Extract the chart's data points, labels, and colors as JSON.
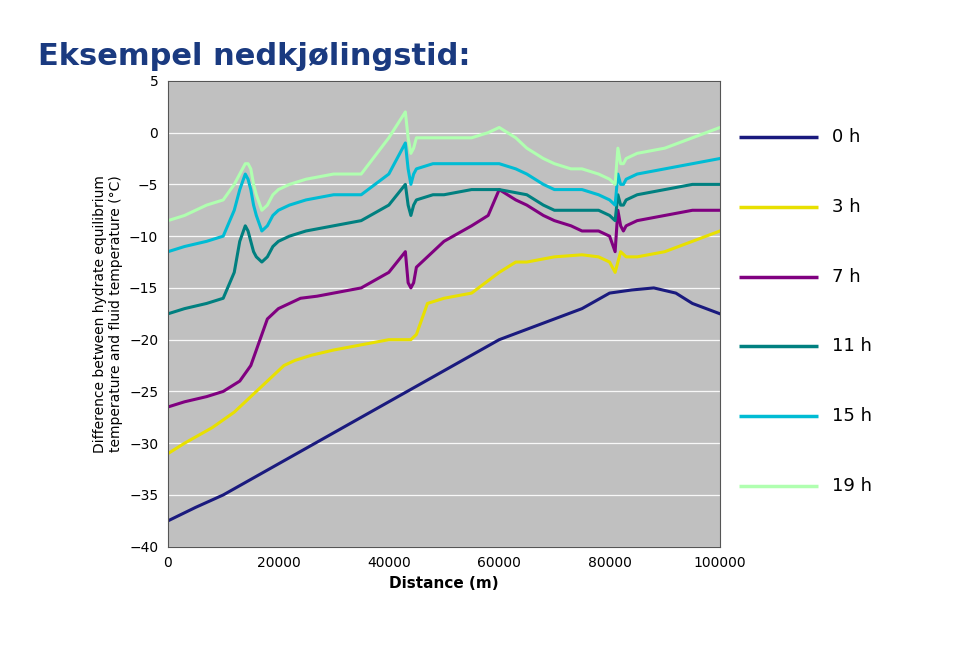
{
  "title": "Eksempel nedkjølingstid:",
  "xlabel": "Distance (m)",
  "ylabel": "Difference between hydrate equilibrium\ntemperature and fluid temperature (°C)",
  "xlim": [
    0,
    100000
  ],
  "ylim": [
    -40,
    5
  ],
  "yticks": [
    5,
    0,
    -5,
    -10,
    -15,
    -20,
    -25,
    -30,
    -35,
    -40
  ],
  "xticks": [
    0,
    20000,
    40000,
    60000,
    80000,
    100000
  ],
  "plot_bg_color": "#c0c0c0",
  "fig_bg": "#ffffff",
  "series": [
    {
      "label": "0 h",
      "color": "#1a1a7e",
      "lw": 2.2,
      "x": [
        0,
        5000,
        10000,
        15000,
        20000,
        25000,
        30000,
        35000,
        40000,
        45000,
        50000,
        55000,
        60000,
        65000,
        70000,
        75000,
        80000,
        84000,
        88000,
        92000,
        95000,
        100000
      ],
      "y": [
        -37.5,
        -36.2,
        -35.0,
        -33.5,
        -32.0,
        -30.5,
        -29.0,
        -27.5,
        -26.0,
        -24.5,
        -23.0,
        -21.5,
        -20.0,
        -19.0,
        -18.0,
        -17.0,
        -15.5,
        -15.2,
        -15.0,
        -15.5,
        -16.5,
        -17.5
      ]
    },
    {
      "label": "3 h",
      "color": "#e8e000",
      "lw": 2.2,
      "x": [
        0,
        3000,
        8000,
        12000,
        15000,
        18000,
        19000,
        20000,
        21000,
        23000,
        26000,
        30000,
        35000,
        40000,
        44000,
        45000,
        46000,
        47000,
        50000,
        55000,
        60000,
        63000,
        65000,
        68000,
        70000,
        75000,
        78000,
        80000,
        81000,
        82000,
        83000,
        85000,
        90000,
        95000,
        100000
      ],
      "y": [
        -31.0,
        -30.0,
        -28.5,
        -27.0,
        -25.5,
        -24.0,
        -23.5,
        -23.0,
        -22.5,
        -22.0,
        -21.5,
        -21.0,
        -20.5,
        -20.0,
        -20.0,
        -19.5,
        -18.0,
        -16.5,
        -16.0,
        -15.5,
        -13.5,
        -12.5,
        -12.5,
        -12.2,
        -12.0,
        -11.8,
        -12.0,
        -12.5,
        -13.5,
        -11.5,
        -12.0,
        -12.0,
        -11.5,
        -10.5,
        -9.5
      ]
    },
    {
      "label": "7 h",
      "color": "#800080",
      "lw": 2.2,
      "x": [
        0,
        3000,
        7000,
        10000,
        13000,
        15000,
        16000,
        17000,
        18000,
        19000,
        20000,
        22000,
        24000,
        27000,
        30000,
        35000,
        40000,
        43000,
        43500,
        44000,
        44500,
        45000,
        48000,
        50000,
        55000,
        58000,
        60000,
        63000,
        65000,
        68000,
        70000,
        73000,
        75000,
        78000,
        80000,
        81000,
        81500,
        82000,
        82500,
        83000,
        85000,
        90000,
        95000,
        100000
      ],
      "y": [
        -26.5,
        -26.0,
        -25.5,
        -25.0,
        -24.0,
        -22.5,
        -21.0,
        -19.5,
        -18.0,
        -17.5,
        -17.0,
        -16.5,
        -16.0,
        -15.8,
        -15.5,
        -15.0,
        -13.5,
        -11.5,
        -14.5,
        -15.0,
        -14.5,
        -13.0,
        -11.5,
        -10.5,
        -9.0,
        -8.0,
        -5.5,
        -6.5,
        -7.0,
        -8.0,
        -8.5,
        -9.0,
        -9.5,
        -9.5,
        -10.0,
        -11.5,
        -7.5,
        -9.0,
        -9.5,
        -9.0,
        -8.5,
        -8.0,
        -7.5,
        -7.5
      ]
    },
    {
      "label": "11 h",
      "color": "#008080",
      "lw": 2.2,
      "x": [
        0,
        3000,
        7000,
        10000,
        12000,
        13000,
        14000,
        14500,
        15000,
        15500,
        16000,
        17000,
        18000,
        19000,
        20000,
        22000,
        25000,
        30000,
        35000,
        40000,
        43000,
        43500,
        44000,
        44500,
        45000,
        48000,
        50000,
        55000,
        60000,
        65000,
        68000,
        70000,
        73000,
        75000,
        78000,
        80000,
        81000,
        81500,
        82000,
        82500,
        83000,
        85000,
        90000,
        95000,
        100000
      ],
      "y": [
        -17.5,
        -17.0,
        -16.5,
        -16.0,
        -13.5,
        -10.5,
        -9.0,
        -9.5,
        -10.5,
        -11.5,
        -12.0,
        -12.5,
        -12.0,
        -11.0,
        -10.5,
        -10.0,
        -9.5,
        -9.0,
        -8.5,
        -7.0,
        -5.0,
        -7.0,
        -8.0,
        -7.0,
        -6.5,
        -6.0,
        -6.0,
        -5.5,
        -5.5,
        -6.0,
        -7.0,
        -7.5,
        -7.5,
        -7.5,
        -7.5,
        -8.0,
        -8.5,
        -6.0,
        -7.0,
        -7.0,
        -6.5,
        -6.0,
        -5.5,
        -5.0,
        -5.0
      ]
    },
    {
      "label": "15 h",
      "color": "#00bcd4",
      "lw": 2.2,
      "x": [
        0,
        3000,
        7000,
        10000,
        12000,
        13000,
        14000,
        14500,
        15000,
        15500,
        16000,
        17000,
        18000,
        19000,
        20000,
        22000,
        25000,
        30000,
        35000,
        40000,
        43000,
        43500,
        44000,
        44500,
        45000,
        48000,
        50000,
        55000,
        60000,
        63000,
        65000,
        68000,
        70000,
        73000,
        75000,
        78000,
        80000,
        81000,
        81500,
        82000,
        82500,
        83000,
        85000,
        90000,
        95000,
        100000
      ],
      "y": [
        -11.5,
        -11.0,
        -10.5,
        -10.0,
        -7.5,
        -5.5,
        -4.0,
        -4.5,
        -5.5,
        -7.0,
        -8.0,
        -9.5,
        -9.0,
        -8.0,
        -7.5,
        -7.0,
        -6.5,
        -6.0,
        -6.0,
        -4.0,
        -1.0,
        -3.5,
        -5.0,
        -4.0,
        -3.5,
        -3.0,
        -3.0,
        -3.0,
        -3.0,
        -3.5,
        -4.0,
        -5.0,
        -5.5,
        -5.5,
        -5.5,
        -6.0,
        -6.5,
        -7.0,
        -4.0,
        -5.0,
        -5.0,
        -4.5,
        -4.0,
        -3.5,
        -3.0,
        -2.5
      ]
    },
    {
      "label": "19 h",
      "color": "#b0ffb0",
      "lw": 2.2,
      "x": [
        0,
        3000,
        7000,
        10000,
        12000,
        13000,
        14000,
        14500,
        15000,
        15500,
        16000,
        17000,
        18000,
        19000,
        20000,
        22000,
        25000,
        30000,
        35000,
        40000,
        43000,
        43500,
        44000,
        44500,
        45000,
        48000,
        50000,
        55000,
        58000,
        60000,
        63000,
        65000,
        68000,
        70000,
        73000,
        75000,
        78000,
        80000,
        81000,
        81500,
        82000,
        82500,
        83000,
        85000,
        90000,
        95000,
        100000
      ],
      "y": [
        -8.5,
        -8.0,
        -7.0,
        -6.5,
        -5.0,
        -4.0,
        -3.0,
        -3.0,
        -3.5,
        -5.0,
        -6.0,
        -7.5,
        -7.0,
        -6.0,
        -5.5,
        -5.0,
        -4.5,
        -4.0,
        -4.0,
        -0.5,
        2.0,
        -0.5,
        -2.0,
        -1.5,
        -0.5,
        -0.5,
        -0.5,
        -0.5,
        0.0,
        0.5,
        -0.5,
        -1.5,
        -2.5,
        -3.0,
        -3.5,
        -3.5,
        -4.0,
        -4.5,
        -5.0,
        -1.5,
        -3.0,
        -3.0,
        -2.5,
        -2.0,
        -1.5,
        -0.5,
        0.5
      ]
    }
  ],
  "legend_items": [
    "0 h",
    "3 h",
    "7 h",
    "11 h",
    "15 h",
    "19 h"
  ],
  "legend_colors": [
    "#1a1a7e",
    "#e8e000",
    "#800080",
    "#008080",
    "#00bcd4",
    "#b0ffb0"
  ],
  "title_color": "#1a3a80",
  "title_fontsize": 22,
  "top_bar_color": "#e8a020",
  "bottom_bar_color": "#e8a020",
  "statoil_bg": "#1a3a7e"
}
